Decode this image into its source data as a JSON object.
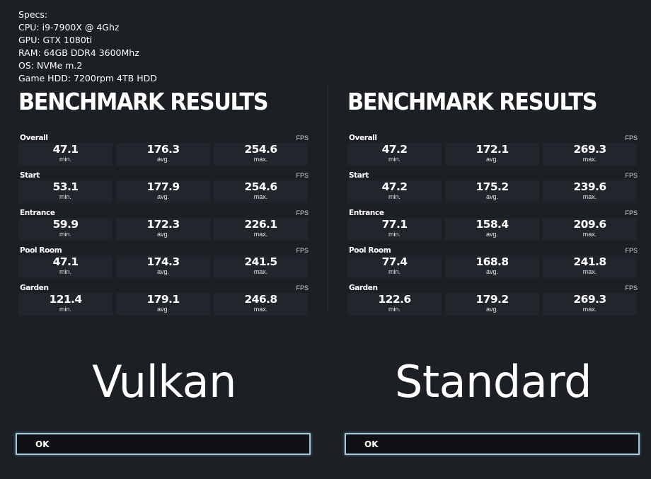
{
  "specs": {
    "heading": "Specs:",
    "cpu": "CPU: i9-7900X @ 4Ghz",
    "gpu": "GPU: GTX 1080ti",
    "ram": "RAM: 64GB DDR4 3600Mhz",
    "os": "OS: NVMe m.2",
    "hdd": "Game HDD: 7200rpm 4TB HDD"
  },
  "panels": [
    {
      "title": "BENCHMARK RESULTS",
      "api": "Vulkan",
      "ok_label": "OK",
      "rows": [
        {
          "label": "Overall",
          "unit": "FPS",
          "min": "47.1",
          "avg": "176.3",
          "max": "254.6",
          "min_label": "min.",
          "avg_label": "avg.",
          "max_label": "max."
        },
        {
          "label": "Start",
          "unit": "FPS",
          "min": "53.1",
          "avg": "177.9",
          "max": "254.6",
          "min_label": "min.",
          "avg_label": "avg.",
          "max_label": "max."
        },
        {
          "label": "Entrance",
          "unit": "FPS",
          "min": "59.9",
          "avg": "172.3",
          "max": "226.1",
          "min_label": "min.",
          "avg_label": "avg.",
          "max_label": "max."
        },
        {
          "label": "Pool Room",
          "unit": "FPS",
          "min": "47.1",
          "avg": "174.3",
          "max": "241.5",
          "min_label": "min.",
          "avg_label": "avg.",
          "max_label": "max."
        },
        {
          "label": "Garden",
          "unit": "FPS",
          "min": "121.4",
          "avg": "179.1",
          "max": "246.8",
          "min_label": "min.",
          "avg_label": "avg.",
          "max_label": "max."
        }
      ]
    },
    {
      "title": "BENCHMARK RESULTS",
      "api": "Standard",
      "ok_label": "OK",
      "rows": [
        {
          "label": "Overall",
          "unit": "FPS",
          "min": "47.2",
          "avg": "172.1",
          "max": "269.3",
          "min_label": "min.",
          "avg_label": "avg.",
          "max_label": "max."
        },
        {
          "label": "Start",
          "unit": "FPS",
          "min": "47.2",
          "avg": "175.2",
          "max": "239.6",
          "min_label": "min.",
          "avg_label": "avg.",
          "max_label": "max."
        },
        {
          "label": "Entrance",
          "unit": "FPS",
          "min": "77.1",
          "avg": "158.4",
          "max": "209.6",
          "min_label": "min.",
          "avg_label": "avg.",
          "max_label": "max."
        },
        {
          "label": "Pool Room",
          "unit": "FPS",
          "min": "77.4",
          "avg": "168.8",
          "max": "241.8",
          "min_label": "min.",
          "avg_label": "avg.",
          "max_label": "max."
        },
        {
          "label": "Garden",
          "unit": "FPS",
          "min": "122.6",
          "avg": "179.2",
          "max": "269.3",
          "min_label": "min.",
          "avg_label": "avg.",
          "max_label": "max."
        }
      ]
    }
  ],
  "colors": {
    "background": "#1c1f24",
    "cell": "#22262c",
    "button_border": "#9fc9dd",
    "text": "#ffffff"
  }
}
